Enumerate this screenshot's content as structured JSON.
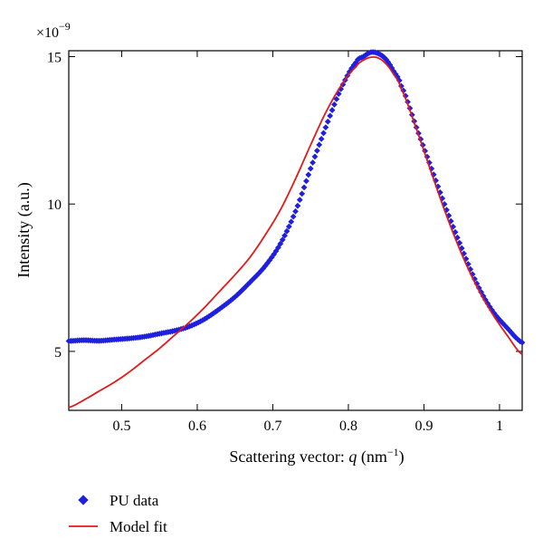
{
  "chart_data": {
    "type": "scatter",
    "scale_factor": {
      "base": "×10",
      "exponent": "−9"
    },
    "xlabel": {
      "prefix": "Scattering vector: ",
      "var": "q",
      "unit_open": " (nm",
      "unit_exp": "−1",
      "unit_close": ")"
    },
    "ylabel": "Intensity (a.u.)",
    "xlim": [
      0.43,
      1.03
    ],
    "ylim": [
      3.0,
      15.2
    ],
    "xticks": [
      0.5,
      0.6,
      0.7,
      0.8,
      0.9,
      1.0
    ],
    "xtick_labels": [
      "0.5",
      "0.6",
      "0.7",
      "0.8",
      "0.9",
      "1"
    ],
    "yticks": [
      5,
      10,
      15
    ],
    "ytick_labels": [
      "5",
      "10",
      "15"
    ],
    "legend_position": "bottom-left",
    "series": [
      {
        "name": "PU data",
        "style": "markers",
        "marker": "diamond",
        "color": "#1f1fe0",
        "x": [
          0.43,
          0.45,
          0.47,
          0.49,
          0.51,
          0.53,
          0.55,
          0.57,
          0.59,
          0.61,
          0.63,
          0.65,
          0.67,
          0.69,
          0.71,
          0.73,
          0.75,
          0.77,
          0.79,
          0.81,
          0.82,
          0.83,
          0.84,
          0.85,
          0.86,
          0.87,
          0.89,
          0.91,
          0.93,
          0.95,
          0.97,
          0.99,
          1.01,
          1.03
        ],
        "y": [
          5.35,
          5.38,
          5.36,
          5.4,
          5.44,
          5.5,
          5.6,
          5.7,
          5.85,
          6.1,
          6.45,
          6.85,
          7.35,
          7.9,
          8.65,
          9.75,
          11.2,
          12.6,
          13.9,
          14.8,
          15.0,
          15.15,
          15.1,
          14.9,
          14.5,
          14.0,
          12.6,
          11.2,
          9.8,
          8.5,
          7.3,
          6.4,
          5.8,
          5.3
        ]
      },
      {
        "name": "Model fit",
        "style": "line",
        "color": "#e01a1a",
        "x": [
          0.43,
          0.45,
          0.47,
          0.49,
          0.51,
          0.53,
          0.55,
          0.57,
          0.59,
          0.61,
          0.63,
          0.65,
          0.67,
          0.69,
          0.71,
          0.73,
          0.75,
          0.77,
          0.79,
          0.81,
          0.82,
          0.83,
          0.84,
          0.85,
          0.86,
          0.87,
          0.89,
          0.91,
          0.93,
          0.95,
          0.97,
          0.99,
          1.01,
          1.03
        ],
        "y": [
          3.1,
          3.35,
          3.65,
          3.95,
          4.3,
          4.7,
          5.1,
          5.55,
          6.0,
          6.5,
          7.05,
          7.6,
          8.2,
          8.95,
          9.8,
          10.85,
          12.0,
          13.1,
          14.0,
          14.65,
          14.88,
          14.98,
          14.95,
          14.75,
          14.4,
          13.9,
          12.55,
          11.05,
          9.6,
          8.3,
          7.2,
          6.3,
          5.55,
          4.9
        ]
      }
    ]
  }
}
